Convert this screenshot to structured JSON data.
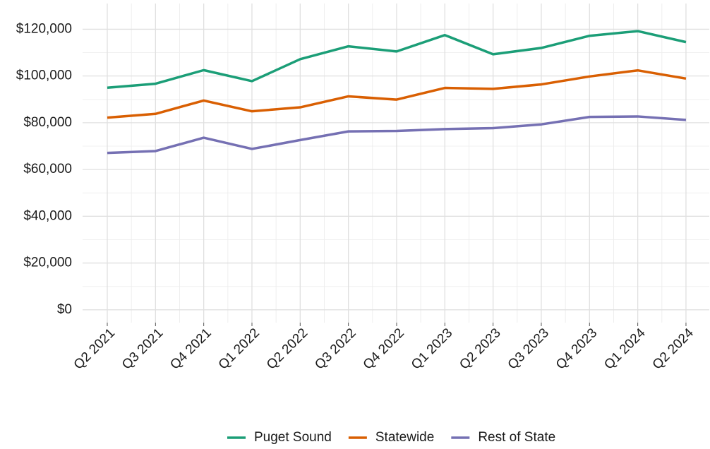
{
  "chart_data": {
    "type": "line",
    "categories": [
      "Q2 2021",
      "Q3 2021",
      "Q4 2021",
      "Q1 2022",
      "Q2 2022",
      "Q3 2022",
      "Q4 2022",
      "Q1 2023",
      "Q2 2023",
      "Q3 2023",
      "Q4 2023",
      "Q1 2024",
      "Q2 2024"
    ],
    "series": [
      {
        "name": "Puget Sound",
        "color": "#1b9e77",
        "values": [
          95000,
          96700,
          102500,
          97800,
          107200,
          112700,
          110500,
          117500,
          109300,
          112000,
          117200,
          119200,
          114500
        ]
      },
      {
        "name": "Statewide",
        "color": "#d95f02",
        "values": [
          82200,
          83800,
          89500,
          84900,
          86600,
          91300,
          89900,
          94900,
          94500,
          96400,
          99800,
          102400,
          98900
        ]
      },
      {
        "name": "Rest of State",
        "color": "#7570b3",
        "values": [
          67100,
          67900,
          73600,
          68800,
          72600,
          76300,
          76500,
          77300,
          77700,
          79300,
          82500,
          82700,
          81200
        ]
      }
    ],
    "ylim": [
      -5500,
      131000
    ],
    "yticks": [
      {
        "value": 0,
        "label": "$0"
      },
      {
        "value": 20000,
        "label": "$20,000"
      },
      {
        "value": 40000,
        "label": "$40,000"
      },
      {
        "value": 60000,
        "label": "$60,000"
      },
      {
        "value": 80000,
        "label": "$80,000"
      },
      {
        "value": 100000,
        "label": "$100,000"
      },
      {
        "value": 120000,
        "label": "$120,000"
      }
    ],
    "grid": true,
    "legend": "bottom"
  }
}
